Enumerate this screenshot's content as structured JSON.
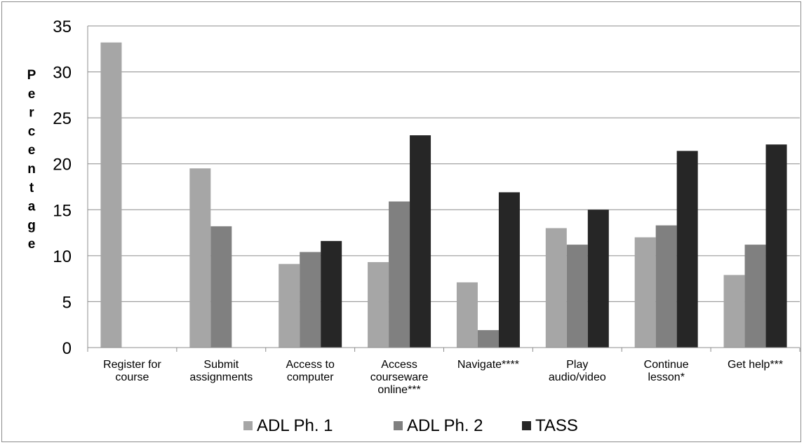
{
  "chart_data": {
    "type": "bar",
    "ylabel": "Percentage",
    "ylim": [
      0,
      35
    ],
    "yticks": [
      "0",
      "5",
      "10",
      "15",
      "20",
      "25",
      "30",
      "35"
    ],
    "grid": true,
    "legend_position": "bottom",
    "categories": [
      [
        "Register for",
        "course"
      ],
      [
        "Submit",
        "assignments"
      ],
      [
        "Access to",
        "computer"
      ],
      [
        "Access",
        "courseware",
        "online***"
      ],
      [
        "Navigate****"
      ],
      [
        "Play",
        "audio/video"
      ],
      [
        "Continue",
        "lesson*"
      ],
      [
        "Get help***"
      ]
    ],
    "series": [
      {
        "name": "ADL Ph. 1",
        "color": "#a6a6a6",
        "values": [
          33.2,
          19.5,
          9.1,
          9.3,
          7.1,
          13.0,
          12.0,
          7.9
        ]
      },
      {
        "name": "ADL Ph. 2",
        "color": "#808080",
        "values": [
          0,
          13.2,
          10.4,
          15.9,
          1.9,
          11.2,
          13.3,
          11.2
        ]
      },
      {
        "name": "TASS",
        "color": "#262626",
        "values": [
          0,
          0,
          11.6,
          23.1,
          16.9,
          15.0,
          21.4,
          22.1
        ]
      }
    ]
  }
}
